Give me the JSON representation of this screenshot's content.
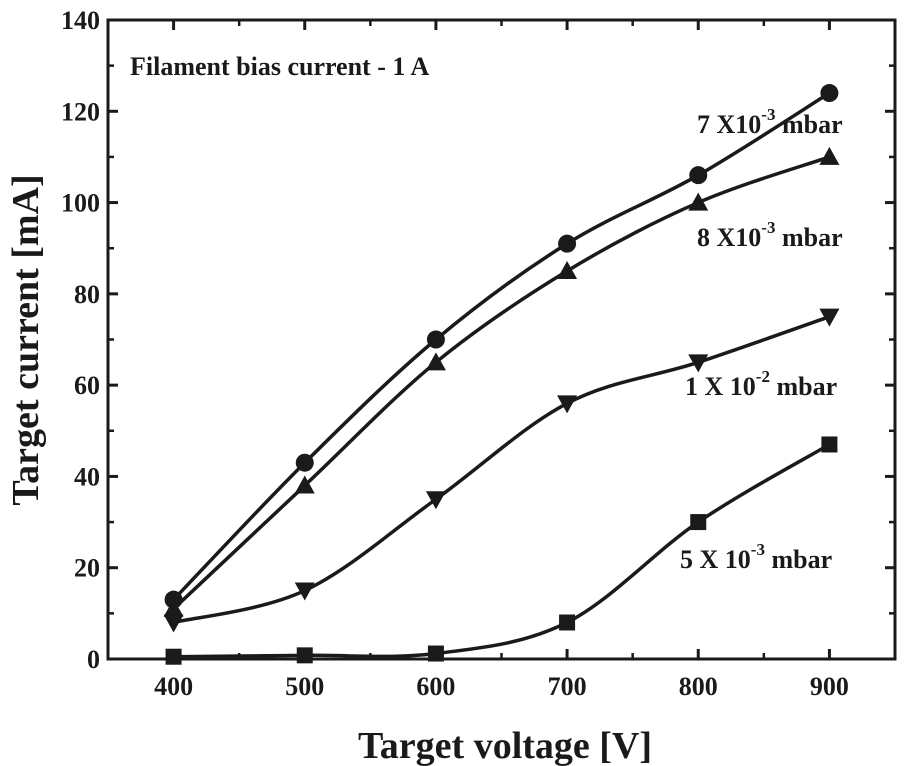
{
  "chart_data": {
    "type": "line",
    "title": "",
    "annotation": "Filament bias current - 1 A",
    "xlabel": "Target voltage [V]",
    "ylabel": "Target current [mA]",
    "xlim": [
      350,
      950
    ],
    "ylim": [
      0,
      140
    ],
    "xticks": [
      400,
      500,
      600,
      700,
      800,
      900
    ],
    "yticks": [
      0,
      20,
      40,
      60,
      80,
      100,
      120,
      140
    ],
    "grid": false,
    "series": [
      {
        "label_base": "7 X10",
        "label_exp": "-3",
        "label_unit": " mbar",
        "marker": "circle",
        "x": [
          400,
          500,
          600,
          700,
          800,
          900
        ],
        "y": [
          13,
          43,
          70,
          91,
          106,
          124
        ]
      },
      {
        "label_base": "8 X10",
        "label_exp": "-3",
        "label_unit": " mbar",
        "marker": "triangle-up",
        "x": [
          400,
          500,
          600,
          700,
          800,
          900
        ],
        "y": [
          11,
          38,
          65,
          85,
          100,
          110
        ]
      },
      {
        "label_base": "1 X 10",
        "label_exp": "-2",
        "label_unit": " mbar",
        "marker": "triangle-down",
        "x": [
          400,
          500,
          600,
          700,
          800,
          900
        ],
        "y": [
          8,
          15,
          35,
          56,
          65,
          75
        ]
      },
      {
        "label_base": "5 X 10",
        "label_exp": "-3",
        "label_unit": " mbar",
        "marker": "square",
        "x": [
          400,
          500,
          600,
          700,
          800,
          900
        ],
        "y": [
          0.5,
          0.8,
          1.2,
          8,
          30,
          47
        ]
      }
    ]
  }
}
